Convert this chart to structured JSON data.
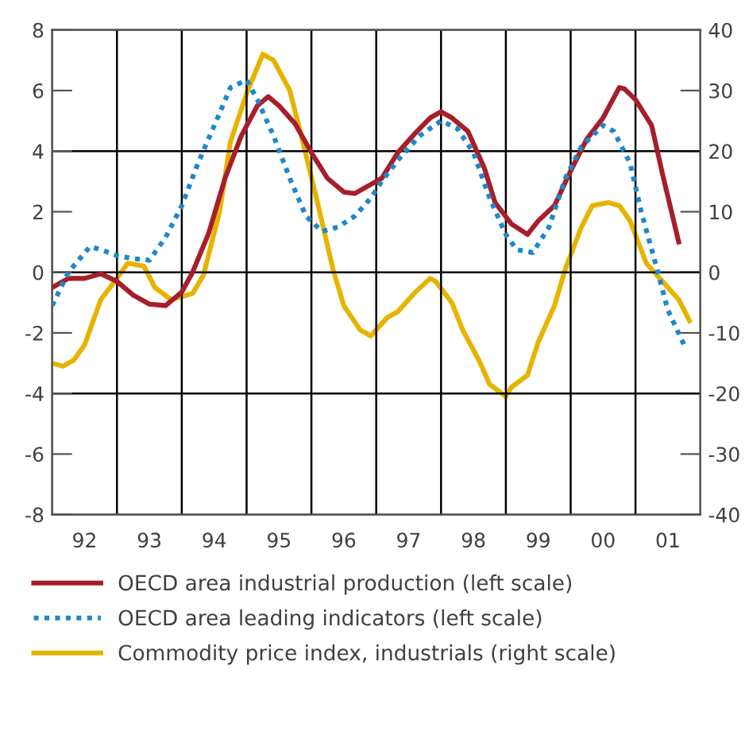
{
  "chart_data": {
    "type": "line",
    "xlim": [
      "1992-01-01",
      "2002-01-01"
    ],
    "xticks": [
      {
        "value": "1992-07",
        "label": "92"
      },
      {
        "value": "1993-07",
        "label": "93"
      },
      {
        "value": "1994-07",
        "label": "94"
      },
      {
        "value": "1995-07",
        "label": "95"
      },
      {
        "value": "1996-07",
        "label": "96"
      },
      {
        "value": "1997-07",
        "label": "97"
      },
      {
        "value": "1998-07",
        "label": "98"
      },
      {
        "value": "1999-07",
        "label": "99"
      },
      {
        "value": "2000-07",
        "label": "00"
      },
      {
        "value": "2001-07",
        "label": "01"
      }
    ],
    "ylim": [
      -8,
      8
    ],
    "yticks": [
      -8,
      -6,
      -4,
      -2,
      0,
      2,
      4,
      6,
      8
    ],
    "y2lim": [
      -40,
      40
    ],
    "y2ticks": [
      -40,
      -30,
      -20,
      -10,
      0,
      10,
      20,
      30,
      40
    ],
    "grid": false,
    "legend": "bottom",
    "ref_lines": [
      {
        "axis": "y",
        "value": 4
      },
      {
        "axis": "y",
        "value": 0
      },
      {
        "axis": "y",
        "value": -4
      },
      {
        "axis": "x",
        "value": "1993-01"
      },
      {
        "axis": "x",
        "value": "1994-01"
      },
      {
        "axis": "x",
        "value": "1995-01"
      },
      {
        "axis": "x",
        "value": "1996-01"
      },
      {
        "axis": "x",
        "value": "1997-01"
      },
      {
        "axis": "x",
        "value": "1998-01"
      },
      {
        "axis": "x",
        "value": "1999-01"
      },
      {
        "axis": "x",
        "value": "2000-01"
      },
      {
        "axis": "x",
        "value": "2001-01"
      }
    ],
    "series": [
      {
        "name": "OECD area industrial production (left scale)",
        "color": "#a71e2b",
        "line_style": "solid",
        "x": [
          "1992-01",
          "1992-04",
          "1992-07",
          "1992-10",
          "1993-01",
          "1993-04",
          "1993-07",
          "1993-10",
          "1994-01",
          "1994-03",
          "1994-06",
          "1994-09",
          "1994-12",
          "1995-03",
          "1995-05",
          "1995-07",
          "1995-10",
          "1996-01",
          "1996-04",
          "1996-07",
          "1996-09",
          "1996-12",
          "1997-02",
          "1997-05",
          "1997-08",
          "1997-11",
          "1998-01",
          "1998-03",
          "1998-06",
          "1998-09",
          "1998-11",
          "1999-02",
          "1999-05",
          "1999-07",
          "1999-10",
          "2000-01",
          "2000-04",
          "2000-07",
          "2000-10",
          "2000-11",
          "2001-01",
          "2001-04",
          "2001-06",
          "2001-09"
        ],
        "values": [
          -0.5,
          -0.2,
          -0.2,
          -0.05,
          -0.3,
          -0.75,
          -1.05,
          -1.1,
          -0.65,
          0.0,
          1.3,
          3.1,
          4.5,
          5.5,
          5.8,
          5.5,
          4.9,
          3.95,
          3.1,
          2.65,
          2.6,
          2.9,
          3.1,
          3.95,
          4.55,
          5.1,
          5.3,
          5.1,
          4.65,
          3.45,
          2.3,
          1.6,
          1.25,
          1.7,
          2.2,
          3.35,
          4.4,
          5.1,
          6.1,
          6.05,
          5.7,
          4.85,
          3.25,
          1.0
        ]
      },
      {
        "name": "OECD area leading indicators (left scale)",
        "color": "#1e88c8",
        "line_style": "dotted",
        "x": [
          "1992-01",
          "1992-04",
          "1992-08",
          "1992-10",
          "1993-01",
          "1993-04",
          "1993-07",
          "1993-10",
          "1994-01",
          "1994-04",
          "1994-08",
          "1994-10",
          "1995-01",
          "1995-03",
          "1995-06",
          "1995-09",
          "1995-12",
          "1996-03",
          "1996-06",
          "1996-09",
          "1996-12",
          "1997-02",
          "1997-05",
          "1997-09",
          "1998-01",
          "1998-04",
          "1998-07",
          "1998-10",
          "1999-01",
          "1999-03",
          "1999-06",
          "1999-09",
          "1999-12",
          "2000-03",
          "2000-07",
          "2000-09",
          "2000-12",
          "2001-02",
          "2001-05",
          "2001-07",
          "2001-10"
        ],
        "values": [
          -1.1,
          0.0,
          0.85,
          0.75,
          0.55,
          0.45,
          0.4,
          1.15,
          2.2,
          3.6,
          5.25,
          6.1,
          6.35,
          5.7,
          4.5,
          3.1,
          1.85,
          1.35,
          1.5,
          1.85,
          2.45,
          3.0,
          3.7,
          4.5,
          5.0,
          4.75,
          3.95,
          2.45,
          1.25,
          0.75,
          0.65,
          1.5,
          3.1,
          4.15,
          4.85,
          4.65,
          3.6,
          2.05,
          0.1,
          -1.25,
          -2.4
        ]
      },
      {
        "name": "Commodity price index, industrials (right scale)",
        "color": "#e6b400",
        "line_style": "solid",
        "axis": "y2",
        "x": [
          "1992-01",
          "1992-03",
          "1992-05",
          "1992-07",
          "1992-10",
          "1993-01",
          "1993-03",
          "1993-06",
          "1993-08",
          "1993-11",
          "1994-01",
          "1994-03",
          "1994-05",
          "1994-08",
          "1994-10",
          "1995-01",
          "1995-04",
          "1995-06",
          "1995-09",
          "1995-11",
          "1996-02",
          "1996-05",
          "1996-07",
          "1996-10",
          "1996-12",
          "1997-03",
          "1997-05",
          "1997-08",
          "1997-11",
          "1997-12",
          "1998-03",
          "1998-05",
          "1998-08",
          "1998-10",
          "1999-01",
          "1999-02",
          "1999-05",
          "1999-07",
          "1999-10",
          "1999-12",
          "2000-03",
          "2000-05",
          "2000-08",
          "2000-10",
          "2000-12",
          "2001-03",
          "2001-06",
          "2001-09",
          "2001-11"
        ],
        "values": [
          -15,
          -15.5,
          -14.5,
          -12,
          -4.5,
          -1,
          1.5,
          1,
          -2.5,
          -4.5,
          -4,
          -3.5,
          -0.5,
          10,
          21.5,
          29.5,
          36,
          35,
          30,
          23,
          12,
          0.5,
          -5.5,
          -9.5,
          -10.5,
          -7.5,
          -6.5,
          -3.5,
          -1,
          -1.5,
          -5,
          -9.5,
          -14.5,
          -18.5,
          -20.5,
          -19,
          -17,
          -11.5,
          -5.5,
          0.5,
          7.5,
          11,
          11.5,
          11,
          8.5,
          1.5,
          -1.5,
          -4.5,
          -8
        ]
      }
    ]
  }
}
